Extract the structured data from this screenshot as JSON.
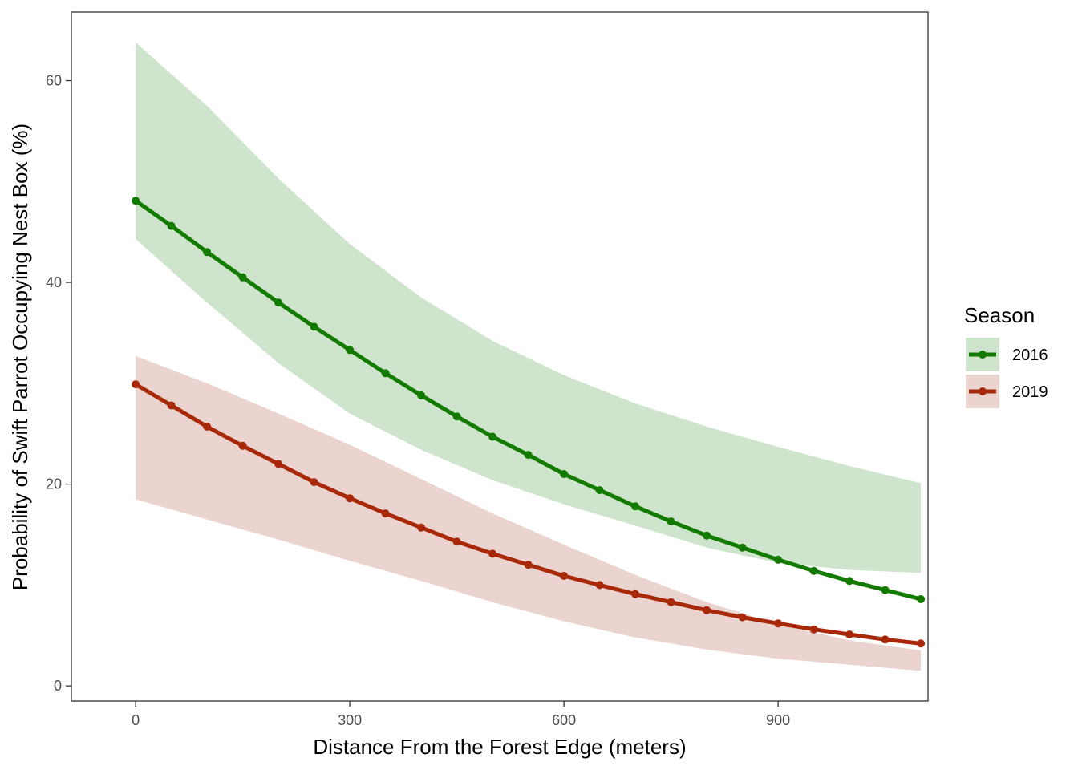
{
  "chart_data": {
    "type": "line",
    "title": "",
    "xlabel": "Distance From the Forest Edge (meters)",
    "ylabel": "Probability of Swift Parrot Occupying Nest Box (%)",
    "xlim": [
      -90,
      1110
    ],
    "ylim": [
      -1.5,
      66.8
    ],
    "xticks": [
      0,
      300,
      600,
      900
    ],
    "yticks": [
      0,
      20,
      40,
      60
    ],
    "grid": false,
    "legend": {
      "title": "Season",
      "position": "right"
    },
    "x": [
      0,
      50,
      100,
      150,
      200,
      250,
      300,
      350,
      400,
      450,
      500,
      550,
      600,
      650,
      700,
      750,
      800,
      850,
      900,
      950,
      1000,
      1050,
      1100
    ],
    "band_x": [
      0,
      100,
      200,
      300,
      400,
      500,
      600,
      700,
      800,
      900,
      1000,
      1100
    ],
    "series": [
      {
        "name": "2016",
        "color": "#137a00",
        "band_color": "#cfe4cc",
        "values": [
          48.1,
          45.6,
          43.0,
          40.5,
          38.0,
          35.6,
          33.3,
          31.0,
          28.8,
          26.7,
          24.7,
          22.9,
          21.0,
          19.4,
          17.8,
          16.3,
          14.9,
          13.7,
          12.5,
          11.4,
          10.4,
          9.5,
          8.6
        ],
        "lower": [
          44.3,
          38.0,
          32.0,
          27.0,
          23.4,
          20.4,
          18.0,
          15.9,
          13.7,
          12.2,
          11.5,
          11.2
        ],
        "upper": [
          63.8,
          57.5,
          50.3,
          43.8,
          38.5,
          34.2,
          30.8,
          28.0,
          25.7,
          23.7,
          21.8,
          20.1
        ]
      },
      {
        "name": "2019",
        "color": "#a8290a",
        "band_color": "#ebd3cf",
        "values": [
          29.9,
          27.8,
          25.7,
          23.8,
          22.0,
          20.2,
          18.6,
          17.1,
          15.7,
          14.3,
          13.1,
          12.0,
          10.9,
          10.0,
          9.1,
          8.3,
          7.5,
          6.8,
          6.2,
          5.6,
          5.1,
          4.6,
          4.2
        ],
        "lower": [
          18.5,
          16.5,
          14.5,
          12.4,
          10.4,
          8.3,
          6.4,
          4.8,
          3.6,
          2.7,
          2.1,
          1.5
        ],
        "upper": [
          32.7,
          30.0,
          27.0,
          23.9,
          20.5,
          17.1,
          14.0,
          11.0,
          8.3,
          6.1,
          4.5,
          3.5
        ]
      }
    ],
    "overlap_color": "#c7bfa8"
  }
}
